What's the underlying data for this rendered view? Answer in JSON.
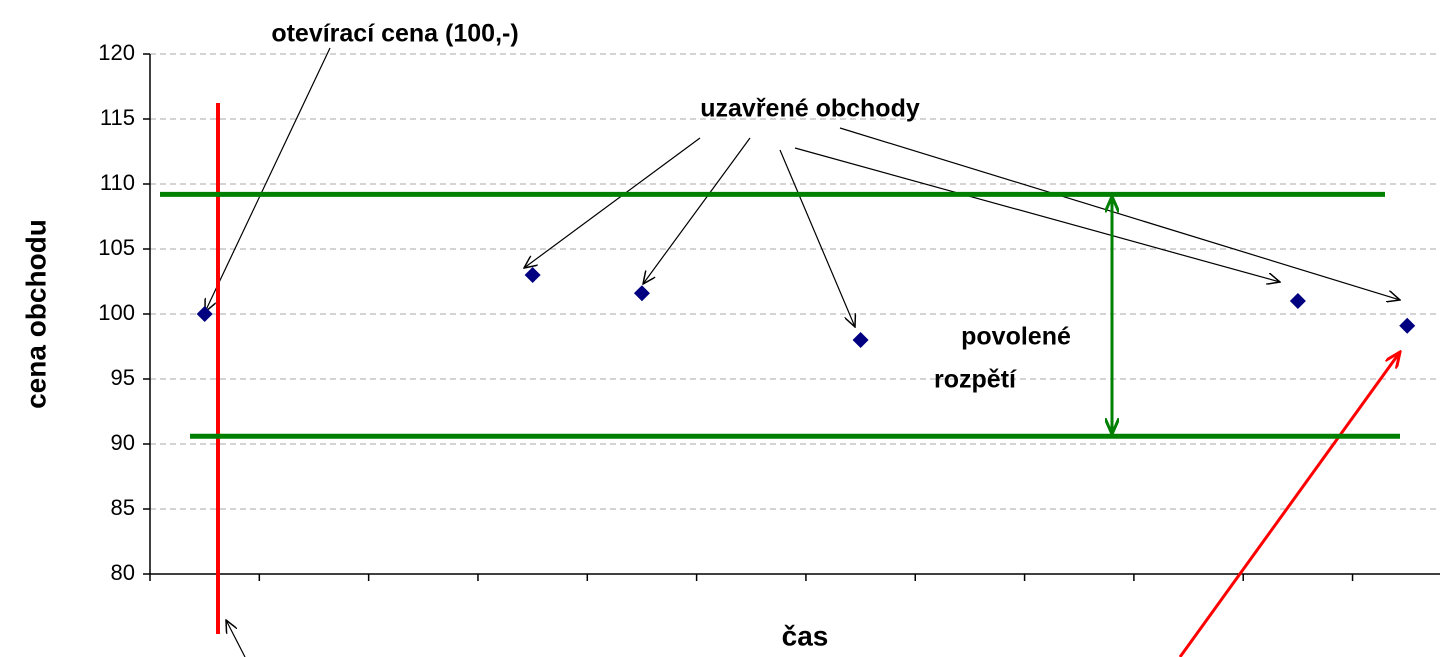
{
  "chart_data": {
    "type": "scatter",
    "title": "uzavřené obchody",
    "annotations": {
      "opening": "otevírací cena (100,-)",
      "range": [
        "povolené",
        "rozpětí"
      ]
    },
    "xlabel": "čas",
    "ylabel": "cena obchodu",
    "x": [
      1,
      4,
      5,
      7,
      11,
      12
    ],
    "series": [
      {
        "color": "#000080",
        "values": [
          100,
          103,
          101.6,
          98,
          101,
          99.1
        ]
      }
    ],
    "limits": [
      109.2,
      90.6
    ],
    "xlim": [
      0.5,
      12.3
    ],
    "xticks": [
      0.5,
      1.5,
      2.5,
      3.5,
      4.5,
      5.5,
      6.5,
      7.5,
      8.5,
      9.5,
      10.5,
      11.5
    ],
    "ylim": [
      80,
      120
    ],
    "yticks": [
      80,
      85,
      90,
      95,
      100,
      105,
      110,
      115,
      120
    ],
    "grid": true
  }
}
